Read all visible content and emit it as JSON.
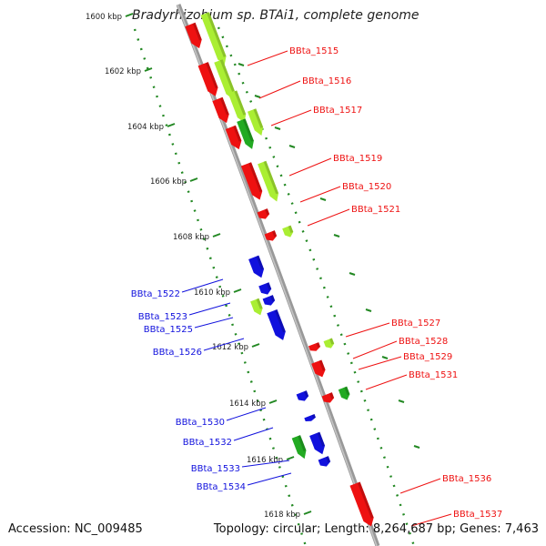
{
  "title": "Bradyrhizobium sp. BTAi1, complete genome",
  "footer": {
    "accession": "Accession: NC_009485",
    "summary": "Topology: circular; Length: 8,264,687 bp; Genes: 7,463"
  },
  "ticks": [
    "1600 kbp",
    "1602 kbp",
    "1604 kbp",
    "1606 kbp",
    "1608 kbp",
    "1610 kbp",
    "1612 kbp",
    "1614 kbp",
    "1616 kbp",
    "1618 kbp"
  ],
  "colors": {
    "forward_cds": "#ee1111",
    "reverse_cds": "#1111dd",
    "rna_light": "#aaee33",
    "rna_dark": "#22aa22",
    "backbone": "#999999",
    "tick_green": "#228822"
  },
  "genes_right": [
    "BBta_1515",
    "BBta_1516",
    "BBta_1517",
    "BBta_1519",
    "BBta_1520",
    "BBta_1521",
    "BBta_1527",
    "BBta_1528",
    "BBta_1529",
    "BBta_1531",
    "BBta_1536",
    "BBta_1537"
  ],
  "genes_left": [
    "BBta_1522",
    "BBta_1523",
    "BBta_1525",
    "BBta_1526",
    "BBta_1530",
    "BBta_1532",
    "BBta_1533",
    "BBta_1534"
  ]
}
